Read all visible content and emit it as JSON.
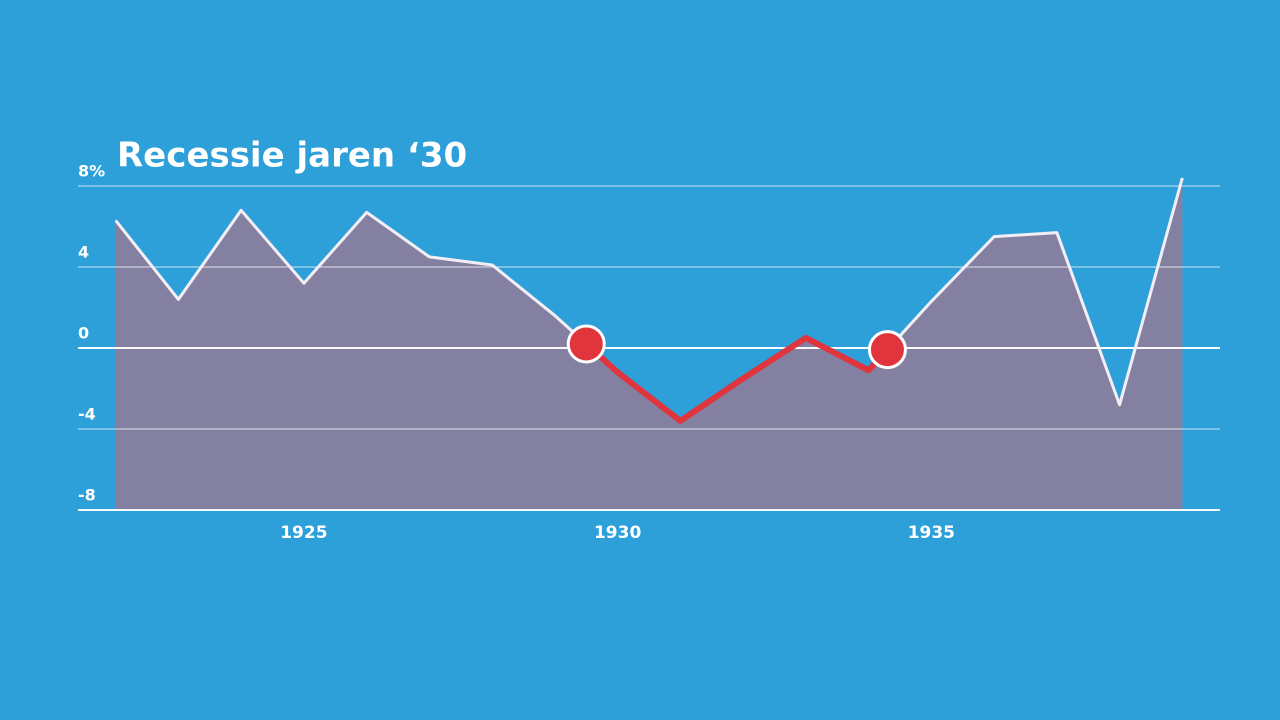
{
  "chart_data": {
    "type": "area",
    "title": "Recessie jaren ‘30",
    "x": [
      1922,
      1923,
      1924,
      1925,
      1926,
      1927,
      1928,
      1929,
      1930,
      1931,
      1932,
      1933,
      1934,
      1935,
      1936,
      1937,
      1938,
      1939
    ],
    "values": [
      6.3,
      2.4,
      6.8,
      3.2,
      6.7,
      4.5,
      4.1,
      1.6,
      -1.2,
      -3.6,
      -1.5,
      0.5,
      -1.1,
      2.3,
      5.5,
      5.7,
      -2.8,
      8.4
    ],
    "color": "#8c7d9c",
    "line_color": "#f3eef5",
    "highlight": [
      1929.5,
      1934.3
    ],
    "highlight_color": "#e0353d",
    "xlim": [
      1921.4,
      1939.6
    ],
    "xticks": [
      1925,
      1930,
      1935
    ],
    "ylim": [
      -8,
      8
    ],
    "yticks": [
      {
        "value": 8,
        "label": "8%"
      },
      4,
      0,
      -4,
      -8
    ],
    "grid": true
  }
}
